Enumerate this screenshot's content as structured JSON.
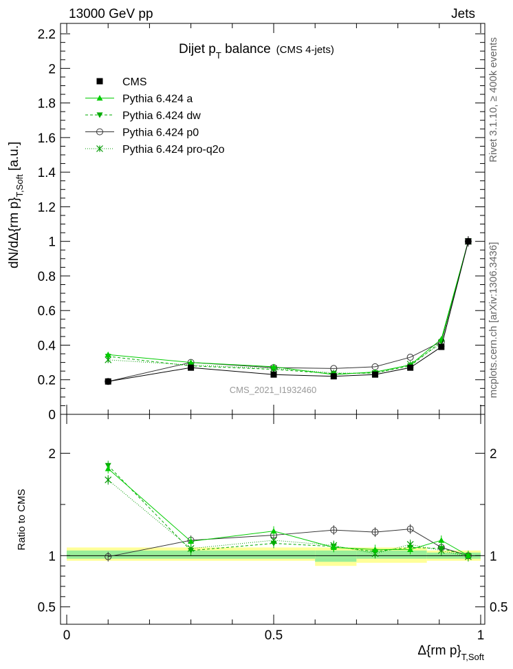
{
  "header": {
    "left": "13000 GeV pp",
    "right": "Jets"
  },
  "side_labels": {
    "rivet": "Rivet 3.1.10, ≥ 400k events",
    "mcplots": "mcplots.cern.ch [arXiv:1306.3436]"
  },
  "chart_data": [
    {
      "type": "line",
      "title_main": "Dijet p",
      "title_sub": "T",
      "title_rest": " balance",
      "subtitle": "(CMS 4-jets)",
      "ylabel_main": "dN/dΔ{rm p}",
      "ylabel_sub": "T,Soft",
      "ylabel_unit": " [a.u.]",
      "watermark": "CMS_2021_I1932460",
      "xlim": [
        -0.015,
        1.01
      ],
      "ylim": [
        0,
        2.26
      ],
      "yticks": [
        {
          "v": 0,
          "label": "0"
        },
        {
          "v": 0.2,
          "label": "0.2"
        },
        {
          "v": 0.4,
          "label": "0.4"
        },
        {
          "v": 0.6,
          "label": "0.6"
        },
        {
          "v": 0.8,
          "label": "0.8"
        },
        {
          "v": 1.0,
          "label": "1"
        },
        {
          "v": 1.2,
          "label": "1.2"
        },
        {
          "v": 1.4,
          "label": "1.4"
        },
        {
          "v": 1.6,
          "label": "1.6"
        },
        {
          "v": 1.8,
          "label": "1.8"
        },
        {
          "v": 2.0,
          "label": "2"
        },
        {
          "v": 2.2,
          "label": "2.2"
        }
      ],
      "x": [
        0.1,
        0.3,
        0.5,
        0.645,
        0.745,
        0.83,
        0.905,
        0.97
      ],
      "series": [
        {
          "name": "CMS",
          "color": "#000000",
          "marker": "square",
          "dash": "",
          "values": [
            0.19,
            0.27,
            0.23,
            0.22,
            0.23,
            0.27,
            0.39,
            1.0
          ],
          "errors": [
            0.01,
            0.01,
            0.01,
            0.01,
            0.01,
            0.01,
            0.015,
            0.03
          ]
        },
        {
          "name": "Pythia 6.424 a",
          "color": "#00cc00",
          "marker": "triangle-up",
          "dash": "",
          "values": [
            0.345,
            0.3,
            0.275,
            0.23,
            0.245,
            0.285,
            0.435,
            1.0
          ]
        },
        {
          "name": "Pythia 6.424 dw",
          "color": "#00aa00",
          "marker": "triangle-down",
          "dash": "4,3",
          "values": [
            0.335,
            0.28,
            0.26,
            0.235,
            0.24,
            0.28,
            0.42,
            1.0
          ]
        },
        {
          "name": "Pythia 6.424 p0",
          "color": "#333333",
          "marker": "circle-open",
          "dash": "",
          "values": [
            0.19,
            0.3,
            0.27,
            0.265,
            0.275,
            0.33,
            0.42,
            1.0
          ]
        },
        {
          "name": "Pythia 6.424 pro-q2o",
          "color": "#009900",
          "marker": "star",
          "dash": "1,2",
          "values": [
            0.315,
            0.285,
            0.265,
            0.24,
            0.235,
            0.29,
            0.41,
            1.0
          ]
        }
      ]
    },
    {
      "type": "line",
      "ylabel": "Ratio to CMS",
      "xlabel_main": "Δ{rm p}",
      "xlabel_sub": "T,Soft",
      "xlim": [
        -0.015,
        1.01
      ],
      "ylim": [
        0.33,
        2.38
      ],
      "yticks": [
        {
          "v": 0.5,
          "label": "0.5"
        },
        {
          "v": 1.0,
          "label": "1"
        },
        {
          "v": 2.0,
          "label": "2"
        }
      ],
      "xticks": [
        {
          "v": 0,
          "label": "0"
        },
        {
          "v": 0.5,
          "label": "0.5"
        },
        {
          "v": 1.0,
          "label": "1"
        }
      ],
      "bands": [
        {
          "x0": 0.0,
          "x1": 0.6,
          "inner": [
            0.97,
            1.05
          ],
          "outer": [
            0.95,
            1.08
          ]
        },
        {
          "x0": 0.6,
          "x1": 0.7,
          "inner": [
            0.94,
            1.05
          ],
          "outer": [
            0.9,
            1.08
          ]
        },
        {
          "x0": 0.7,
          "x1": 0.87,
          "inner": [
            0.97,
            1.05
          ],
          "outer": [
            0.93,
            1.08
          ]
        },
        {
          "x0": 0.87,
          "x1": 1.0,
          "inner": [
            0.97,
            1.03
          ],
          "outer": [
            0.95,
            1.05
          ]
        }
      ],
      "x": [
        0.1,
        0.3,
        0.5,
        0.645,
        0.745,
        0.83,
        0.905,
        0.97
      ],
      "series": [
        {
          "name": "Pythia 6.424 a",
          "color": "#00cc00",
          "marker": "triangle-up",
          "dash": "",
          "values": [
            1.85,
            1.14,
            1.24,
            1.08,
            1.06,
            1.06,
            1.15,
            1.0
          ]
        },
        {
          "name": "Pythia 6.424 dw",
          "color": "#00aa00",
          "marker": "triangle-down",
          "dash": "4,3",
          "values": [
            1.88,
            1.05,
            1.12,
            1.09,
            1.04,
            1.08,
            1.07,
            1.0
          ]
        },
        {
          "name": "Pythia 6.424 p0",
          "color": "#333333",
          "marker": "circle-open",
          "dash": "",
          "values": [
            0.99,
            1.15,
            1.2,
            1.25,
            1.23,
            1.26,
            1.08,
            1.0
          ]
        },
        {
          "name": "Pythia 6.424 pro-q2o",
          "color": "#009900",
          "marker": "star",
          "dash": "1,2",
          "values": [
            1.74,
            1.07,
            1.15,
            1.1,
            1.02,
            1.11,
            1.05,
            0.99
          ]
        }
      ]
    }
  ]
}
